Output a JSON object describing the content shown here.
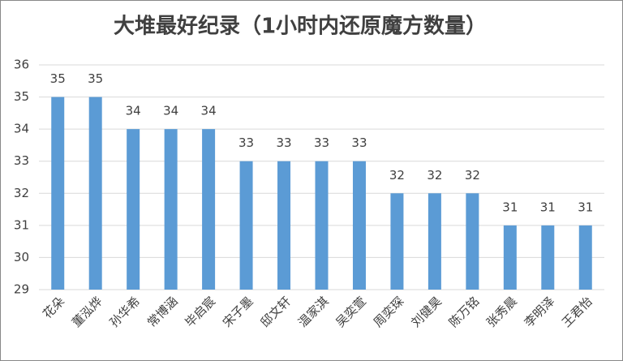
{
  "chart_data": {
    "type": "bar",
    "title": "大堆最好纪录（1小时内还原魔方数量）",
    "categories": [
      "花朵",
      "董泓烨",
      "孙华希",
      "常博涵",
      "毕启宸",
      "宋子墨",
      "邸文轩",
      "温家淇",
      "吴奕萱",
      "周奕琛",
      "刘健昊",
      "陈万铭",
      "张秀晨",
      "李明泽",
      "王君怡"
    ],
    "values": [
      35,
      35,
      34,
      34,
      34,
      33,
      33,
      33,
      33,
      32,
      32,
      32,
      31,
      31,
      31
    ],
    "color": "#5b9bd5",
    "ylim": [
      29,
      36
    ],
    "yticks": [
      29,
      30,
      31,
      32,
      33,
      34,
      35,
      36
    ],
    "grid": true,
    "data_labels": true
  }
}
